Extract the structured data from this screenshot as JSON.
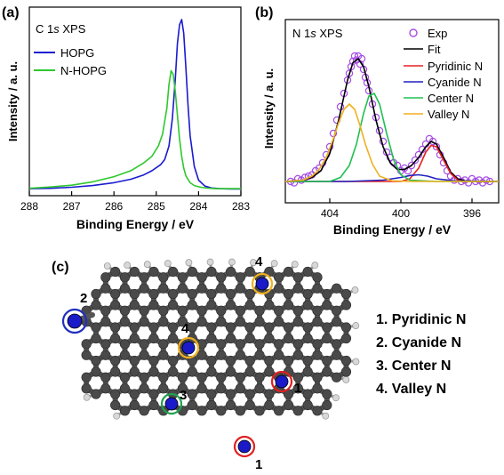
{
  "panel_labels": {
    "a": "(a)",
    "b": "(b)",
    "c": "(c)"
  },
  "chart_data": [
    {
      "type": "line",
      "panel": "a",
      "title": "C 1s XPS",
      "title_parts": [
        "C 1",
        "s",
        " XPS"
      ],
      "xlabel": "Binding Energy / eV",
      "ylabel": "Intensity / a. u.",
      "xlim": [
        288,
        283
      ],
      "x_reversed": true,
      "xticks": [
        288,
        287,
        286,
        285,
        284,
        283
      ],
      "ylim": [
        0,
        1
      ],
      "legend_position": "top-left",
      "series": [
        {
          "name": "HOPG",
          "color": "#1a1ad0",
          "x": [
            288,
            287.5,
            287,
            286.5,
            286,
            285.6,
            285.3,
            285.1,
            284.9,
            284.8,
            284.7,
            284.62,
            284.55,
            284.5,
            284.45,
            284.4,
            284.35,
            284.3,
            284.25,
            284.2,
            284.1,
            284.0,
            283.85,
            283.7,
            283.5,
            283.2,
            283
          ],
          "y": [
            0.01,
            0.012,
            0.018,
            0.028,
            0.045,
            0.065,
            0.09,
            0.115,
            0.15,
            0.18,
            0.26,
            0.42,
            0.65,
            0.86,
            0.97,
            1.0,
            0.92,
            0.72,
            0.5,
            0.32,
            0.14,
            0.06,
            0.025,
            0.014,
            0.01,
            0.008,
            0.008
          ]
        },
        {
          "name": "N-HOPG",
          "color": "#2ec82e",
          "x": [
            288,
            287.5,
            287,
            286.5,
            286,
            285.6,
            285.3,
            285.1,
            284.95,
            284.85,
            284.75,
            284.7,
            284.65,
            284.6,
            284.55,
            284.5,
            284.45,
            284.4,
            284.35,
            284.3,
            284.2,
            284.1,
            283.95,
            283.8,
            283.6,
            283.3,
            283
          ],
          "y": [
            0.012,
            0.02,
            0.03,
            0.05,
            0.08,
            0.115,
            0.16,
            0.2,
            0.26,
            0.33,
            0.48,
            0.62,
            0.7,
            0.68,
            0.58,
            0.44,
            0.3,
            0.2,
            0.13,
            0.085,
            0.045,
            0.028,
            0.018,
            0.013,
            0.01,
            0.01,
            0.01
          ]
        }
      ]
    },
    {
      "type": "line",
      "panel": "b",
      "title": "N 1s XPS",
      "title_parts": [
        "N 1",
        "s",
        " XPS"
      ],
      "xlabel": "Binding Energy / eV",
      "ylabel": "Intensity / a. u.",
      "xlim": [
        406.5,
        394.5
      ],
      "x_reversed": true,
      "xticks": [
        404,
        400,
        396
      ],
      "ylim": [
        0,
        1
      ],
      "legend_position": "top-right",
      "series": [
        {
          "name": "Exp",
          "color": "#a64de6",
          "marker": "open-circle",
          "x": [
            406.2,
            406.0,
            405.8,
            405.6,
            405.4,
            405.2,
            405.0,
            404.8,
            404.6,
            404.4,
            404.2,
            404.0,
            403.8,
            403.6,
            403.4,
            403.2,
            403.0,
            402.9,
            402.8,
            402.7,
            402.6,
            402.5,
            402.4,
            402.3,
            402.2,
            402.1,
            402.0,
            401.9,
            401.8,
            401.6,
            401.4,
            401.2,
            401.0,
            400.8,
            400.6,
            400.4,
            400.2,
            400.0,
            399.8,
            399.6,
            399.4,
            399.2,
            399.0,
            398.8,
            398.6,
            398.4,
            398.2,
            398.0,
            397.8,
            397.6,
            397.4,
            397.2,
            397.0,
            396.8,
            396.6,
            396.4,
            396.2,
            396.0,
            395.8,
            395.6,
            395.4,
            395.2,
            395.0
          ],
          "y": [
            0.04,
            0.03,
            0.06,
            0.05,
            0.07,
            0.08,
            0.09,
            0.12,
            0.14,
            0.18,
            0.24,
            0.3,
            0.4,
            0.5,
            0.6,
            0.7,
            0.8,
            0.85,
            0.9,
            0.94,
            0.98,
            0.95,
            0.98,
            0.92,
            0.96,
            0.88,
            0.82,
            0.78,
            0.72,
            0.62,
            0.52,
            0.42,
            0.34,
            0.26,
            0.22,
            0.18,
            0.16,
            0.12,
            0.14,
            0.12,
            0.16,
            0.2,
            0.24,
            0.28,
            0.32,
            0.36,
            0.34,
            0.3,
            0.24,
            0.18,
            0.12,
            0.08,
            0.05,
            0.06,
            0.04,
            0.05,
            0.03,
            0.06,
            0.04,
            0.05,
            0.03,
            0.05,
            0.04
          ]
        },
        {
          "name": "Fit",
          "color": "#000000",
          "x": [
            406.5,
            405.5,
            405,
            404.5,
            404,
            403.5,
            403,
            402.7,
            402.4,
            402.1,
            401.8,
            401.4,
            401,
            400.6,
            400.2,
            399.8,
            399.4,
            399,
            398.6,
            398.3,
            398,
            397.6,
            397.2,
            396.8,
            396.4,
            396,
            395.5,
            395,
            394.5
          ],
          "y": [
            0.04,
            0.05,
            0.07,
            0.12,
            0.25,
            0.5,
            0.8,
            0.93,
            0.96,
            0.9,
            0.75,
            0.5,
            0.3,
            0.18,
            0.13,
            0.13,
            0.16,
            0.22,
            0.3,
            0.34,
            0.32,
            0.22,
            0.11,
            0.06,
            0.045,
            0.04,
            0.04,
            0.04,
            0.04
          ]
        },
        {
          "name": "Pyridinic N",
          "color": "#e82020",
          "x": [
            406.5,
            400,
            399.5,
            399,
            398.6,
            398.3,
            398.0,
            397.6,
            397.2,
            396.8,
            396.4,
            396,
            394.5
          ],
          "y": [
            0.04,
            0.04,
            0.06,
            0.14,
            0.26,
            0.31,
            0.3,
            0.2,
            0.1,
            0.05,
            0.04,
            0.04,
            0.04
          ]
        },
        {
          "name": "Cyanide N",
          "color": "#2020c0",
          "x": [
            406.5,
            403,
            401,
            400,
            399.5,
            399,
            398.5,
            398,
            397,
            394.5
          ],
          "y": [
            0.04,
            0.04,
            0.05,
            0.07,
            0.085,
            0.09,
            0.08,
            0.06,
            0.045,
            0.04
          ]
        },
        {
          "name": "Center N",
          "color": "#20c050",
          "x": [
            406.5,
            404,
            403.4,
            402.9,
            402.5,
            402.1,
            401.8,
            401.5,
            401.2,
            400.8,
            400.4,
            400,
            399.5,
            398,
            394.5
          ],
          "y": [
            0.04,
            0.04,
            0.07,
            0.16,
            0.32,
            0.55,
            0.68,
            0.7,
            0.62,
            0.4,
            0.2,
            0.09,
            0.05,
            0.04,
            0.04
          ]
        },
        {
          "name": "Valley N",
          "color": "#f0b020",
          "x": [
            406.5,
            405.5,
            405,
            404.6,
            404.2,
            403.8,
            403.5,
            403.2,
            402.9,
            402.6,
            402.3,
            402,
            401.6,
            401.2,
            400.5,
            399.5,
            394.5
          ],
          "y": [
            0.04,
            0.05,
            0.08,
            0.13,
            0.22,
            0.36,
            0.48,
            0.58,
            0.62,
            0.58,
            0.46,
            0.32,
            0.17,
            0.08,
            0.045,
            0.04,
            0.04
          ]
        }
      ]
    }
  ],
  "molecule_legend": [
    {
      "number": "1",
      "text": "1. Pyridinic N",
      "color": "#e02020"
    },
    {
      "number": "2",
      "text": "2. Cyanide  N",
      "color": "#2030c0"
    },
    {
      "number": "3",
      "text": "3. Center N",
      "color": "#20a050"
    },
    {
      "number": "4",
      "text": "4. Valley N",
      "color": "#f0b020"
    }
  ],
  "site_labels": [
    "1",
    "1",
    "2",
    "3",
    "4",
    "4"
  ]
}
